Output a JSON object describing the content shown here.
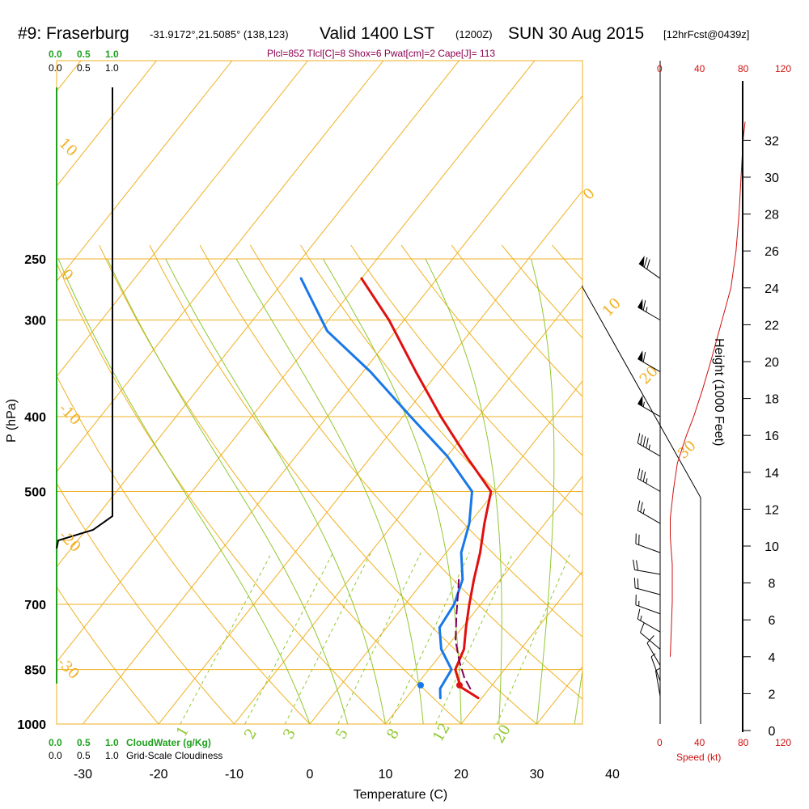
{
  "header": {
    "station": "#9: Fraserburg",
    "coords": "-31.9172°,21.5085° (138,123)",
    "valid": "Valid 1400 LST",
    "utc": "(1200Z)",
    "date": "SUN 30 Aug 2015",
    "forecast": "[12hrFcst@0439z]",
    "indices": "Plcl=852 Tlcl[C]=8 Shox=6 Pwat[cm]=2 Cape[J]= 113"
  },
  "cloud_scales": {
    "water_ticks": [
      "0.0",
      "0.5",
      "1.0"
    ],
    "cloudiness_ticks": [
      "0.0",
      "0.5",
      "1.0"
    ],
    "water_label": "CloudWater (g/Kg)",
    "cloudiness_label": "Grid-Scale Cloudiness"
  },
  "colors": {
    "isotherm": "#f0b020",
    "dry_adiabat": "#f0b020",
    "moist_adiabat": "#90c830",
    "mixing_ratio": "#90c830",
    "temperature": "#e01010",
    "dewpoint": "#1878e8",
    "parcel": "#800060",
    "cloud_water": "#20a020",
    "cloudiness": "#000000",
    "wind_speed": "#d01010",
    "indices": "#8b0050"
  },
  "chart_data": {
    "type": "line",
    "xlabel": "Temperature (C)",
    "ylabel": "P (hPa)",
    "xlim": [
      -35,
      35
    ],
    "ylim": [
      1000,
      250
    ],
    "x_ticks": [
      -30,
      -20,
      -10,
      0,
      10,
      20,
      30,
      40
    ],
    "p_ticks": [
      250,
      300,
      400,
      500,
      700,
      850,
      1000
    ],
    "isotherm_labels": [
      "10",
      "0",
      "-10",
      "-20",
      "-30",
      "0",
      "10",
      "20",
      "30"
    ],
    "mixing_ratio_labels": [
      "1",
      "2",
      "3",
      "5",
      "8",
      "12",
      "20"
    ],
    "series": [
      {
        "key": "temperature",
        "points": [
          [
            19.5,
            925
          ],
          [
            16,
            895
          ],
          [
            13.5,
            850
          ],
          [
            12.5,
            800
          ],
          [
            10.5,
            750
          ],
          [
            8.5,
            700
          ],
          [
            6.5,
            650
          ],
          [
            4.5,
            600
          ],
          [
            2,
            550
          ],
          [
            -0.5,
            500
          ],
          [
            -7.5,
            450
          ],
          [
            -15,
            400
          ],
          [
            -23,
            350
          ],
          [
            -32,
            300
          ],
          [
            -40,
            265
          ]
        ]
      },
      {
        "key": "dewpoint",
        "points": [
          [
            14.5,
            925
          ],
          [
            13.5,
            900
          ],
          [
            13,
            850
          ],
          [
            9.5,
            800
          ],
          [
            7,
            750
          ],
          [
            6.5,
            700
          ],
          [
            5,
            650
          ],
          [
            2,
            600
          ],
          [
            0,
            550
          ],
          [
            -3,
            500
          ],
          [
            -10,
            450
          ],
          [
            -19,
            400
          ],
          [
            -29,
            350
          ],
          [
            -39,
            310
          ],
          [
            -48,
            265
          ]
        ]
      },
      {
        "key": "parcel",
        "points": [
          [
            17.5,
            900
          ],
          [
            15.5,
            870
          ],
          [
            13.2,
            830
          ],
          [
            10.5,
            780
          ],
          [
            7.8,
            720
          ],
          [
            5.5,
            670
          ],
          [
            4.5,
            650
          ]
        ]
      }
    ],
    "winds": [
      {
        "p": 920,
        "dir": 350,
        "spd": 5
      },
      {
        "p": 880,
        "dir": 340,
        "spd": 8
      },
      {
        "p": 840,
        "dir": 330,
        "spd": 12
      },
      {
        "p": 800,
        "dir": 310,
        "spd": 14
      },
      {
        "p": 760,
        "dir": 300,
        "spd": 16
      },
      {
        "p": 720,
        "dir": 290,
        "spd": 18
      },
      {
        "p": 680,
        "dir": 285,
        "spd": 20
      },
      {
        "p": 640,
        "dir": 280,
        "spd": 20
      },
      {
        "p": 600,
        "dir": 290,
        "spd": 22
      },
      {
        "p": 550,
        "dir": 300,
        "spd": 28
      },
      {
        "p": 500,
        "dir": 300,
        "spd": 35
      },
      {
        "p": 450,
        "dir": 300,
        "spd": 45
      },
      {
        "p": 400,
        "dir": 300,
        "spd": 55
      },
      {
        "p": 350,
        "dir": 300,
        "spd": 60
      },
      {
        "p": 300,
        "dir": 300,
        "spd": 65
      },
      {
        "p": 265,
        "dir": 305,
        "spd": 70
      }
    ],
    "speed_axis": {
      "label": "Speed (kt)",
      "ticks": [
        "0",
        "40",
        "80",
        "120"
      ],
      "max": 120,
      "profile": [
        [
          10,
          4.0
        ],
        [
          11,
          5.5
        ],
        [
          12,
          7.0
        ],
        [
          12,
          9.0
        ],
        [
          10,
          10.5
        ],
        [
          10,
          11.5
        ],
        [
          13,
          13
        ],
        [
          17,
          14.5
        ],
        [
          26,
          16
        ],
        [
          33,
          17
        ],
        [
          42,
          18.5
        ],
        [
          50,
          20
        ],
        [
          60,
          22
        ],
        [
          70,
          24
        ],
        [
          75,
          26
        ],
        [
          78,
          28
        ],
        [
          80,
          30
        ],
        [
          82,
          32
        ],
        [
          84,
          33
        ]
      ]
    },
    "height_axis": {
      "label": "Height (1000 Feet)",
      "ticks": [
        "0",
        "2",
        "4",
        "6",
        "8",
        "10",
        "12",
        "14",
        "16",
        "18",
        "20",
        "22",
        "24",
        "26",
        "28",
        "30",
        "32"
      ]
    }
  }
}
